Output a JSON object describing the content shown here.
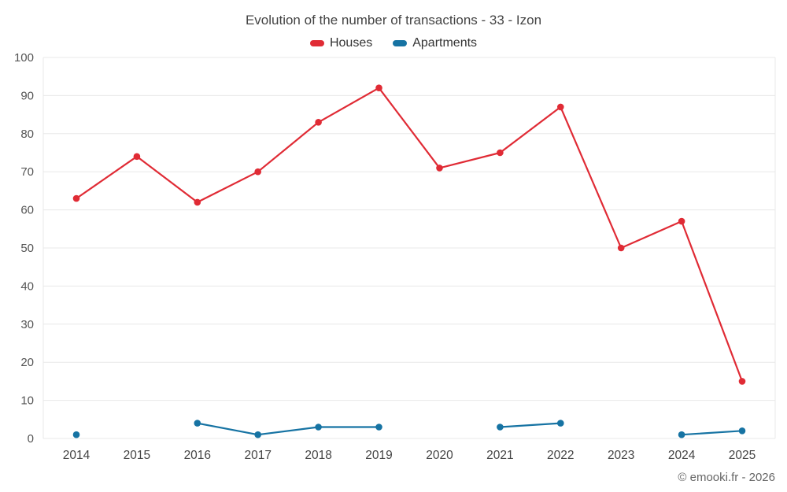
{
  "title": "Evolution of the number of transactions - 33 - Izon",
  "footer": "© emooki.fr - 2026",
  "colors": {
    "houses": "#e02b35",
    "apartments": "#1673a3",
    "grid": "#e8e8e8",
    "tick_text": "#555555",
    "axis_text": "#444444"
  },
  "chart_data": {
    "type": "line",
    "title": "Evolution of the number of transactions - 33 - Izon",
    "categories": [
      "2014",
      "2015",
      "2016",
      "2017",
      "2018",
      "2019",
      "2020",
      "2021",
      "2022",
      "2023",
      "2024",
      "2025"
    ],
    "series": [
      {
        "name": "Houses",
        "color": "#e02b35",
        "values": [
          63,
          74,
          62,
          70,
          83,
          92,
          71,
          75,
          87,
          50,
          57,
          15
        ]
      },
      {
        "name": "Apartments",
        "color": "#1673a3",
        "values": [
          1,
          null,
          4,
          1,
          3,
          3,
          null,
          3,
          4,
          null,
          1,
          2
        ]
      }
    ],
    "xlabel": "",
    "ylabel": "",
    "ylim": [
      0,
      100
    ],
    "ytick_step": 10,
    "grid": true,
    "legend_position": "top"
  }
}
